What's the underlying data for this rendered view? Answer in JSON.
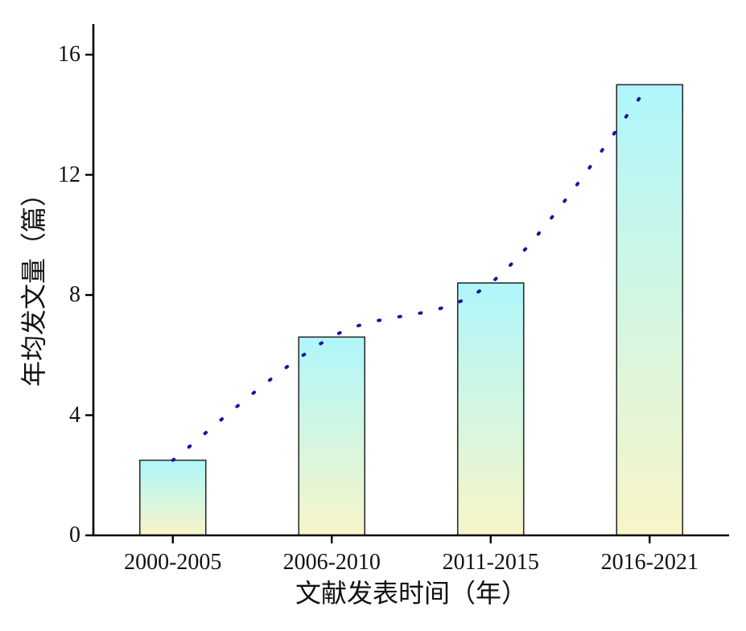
{
  "figure": {
    "background": "#ffffff"
  },
  "chart_data": {
    "type": "bar",
    "title": "",
    "categories": [
      "2000-2005",
      "2006-2010",
      "2011-2015",
      "2016-2021"
    ],
    "values": [
      2.5,
      6.6,
      8.4,
      15.0
    ],
    "trend_line": {
      "type": "spline",
      "style": "dotted",
      "color": "#1414a7",
      "values": [
        2.5,
        6.6,
        8.4,
        15.0
      ],
      "note": "dotted navy curve passing through the top center of each bar"
    },
    "xlabel": "文献发表时间（年）",
    "ylabel": "年均发文量（篇）",
    "yticks": [
      0,
      4,
      8,
      12,
      16
    ],
    "ytick_labels": [
      "0",
      "4",
      "8",
      "12",
      "16"
    ],
    "ylim": [
      0,
      17
    ],
    "grid": false,
    "legend": "none",
    "colors": {
      "bar_gradient_top": "#aff6fb",
      "bar_gradient_bottom": "#f8f5c8",
      "bar_border": "#2b2f2e",
      "axis": "#000000",
      "trend": "#1414a7",
      "text": "#111111",
      "background": "#ffffff"
    }
  }
}
